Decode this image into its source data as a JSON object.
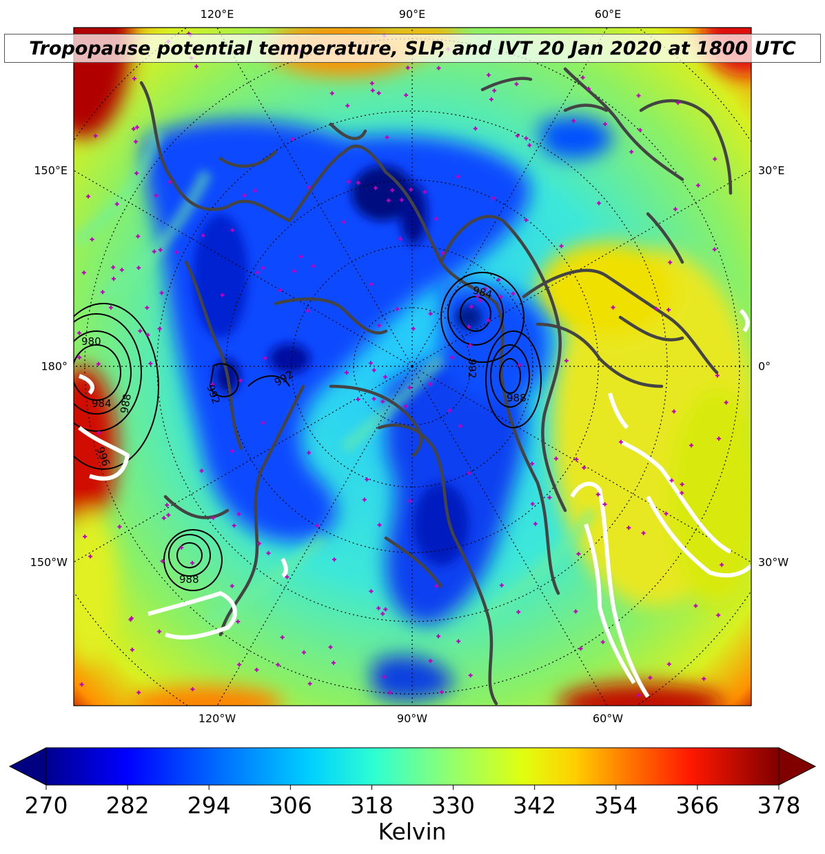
{
  "title": "Tropopause potential temperature, SLP, and IVT 20 Jan 2020 at 1800 UTC",
  "longitude_labels": {
    "top": [
      "120°E",
      "90°E",
      "60°E"
    ],
    "bottom": [
      "120°W",
      "90°W",
      "60°W"
    ],
    "left": [
      "150°E",
      "180°",
      "150°W"
    ],
    "right": [
      "30°E",
      "0°",
      "30°W"
    ]
  },
  "slp_contour_labels": [
    "980",
    "984",
    "988",
    "992",
    "996",
    "988",
    "984",
    "992",
    "988",
    "992",
    "984",
    "988",
    "996",
    "988",
    "992"
  ],
  "colorbar": {
    "units": "Kelvin",
    "min": 270,
    "max": 378,
    "extend": "both",
    "ticks": [
      "270",
      "282",
      "294",
      "306",
      "318",
      "330",
      "342",
      "354",
      "366",
      "378"
    ],
    "colormap": "jet"
  },
  "colors": {
    "coastline": "#444444",
    "slp_contours": "#000000",
    "ivt_contours": "#ffffff",
    "station_markers": "#c000c0"
  }
}
